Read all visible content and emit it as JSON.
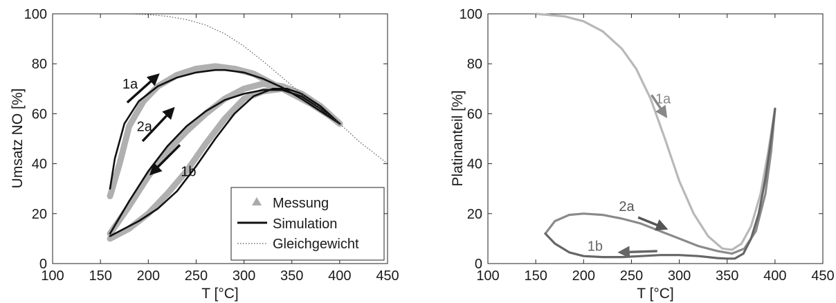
{
  "chart_data": [
    {
      "type": "line",
      "xlabel": "T [°C]",
      "ylabel": "Umsatz NO [%]",
      "xlim": [
        100,
        450
      ],
      "ylim": [
        0,
        100
      ],
      "xticks": [
        100,
        150,
        200,
        250,
        300,
        350,
        400,
        450
      ],
      "yticks": [
        0,
        20,
        40,
        60,
        80,
        100
      ],
      "grid": false,
      "legend_position": "bottom-right",
      "legend": [
        {
          "label": "Messung",
          "marker": "triangle",
          "color": "#aaaaaa"
        },
        {
          "label": "Simulation",
          "marker": "line",
          "color": "#111111"
        },
        {
          "label": "Gleichgewicht",
          "marker": "dotted",
          "color": "#555555"
        }
      ],
      "series": [
        {
          "name": "Messung",
          "style": "band",
          "color": "#b0b0b0",
          "branches": [
            {
              "x": [
                160,
                170,
                180,
                195,
                210,
                230,
                250,
                270,
                290,
                310,
                330,
                350,
                370,
                390,
                400
              ],
              "y": [
                27,
                40,
                55,
                65,
                71,
                75.5,
                78,
                79,
                78,
                76,
                72,
                68,
                64,
                59,
                56
              ]
            },
            {
              "x": [
                160,
                180,
                200,
                220,
                240,
                260,
                280,
                300,
                320,
                340,
                360,
                380,
                400
              ],
              "y": [
                12,
                23,
                35,
                45,
                53,
                60,
                66,
                70,
                72,
                71,
                68,
                63,
                56
              ]
            },
            {
              "x": [
                400,
                380,
                360,
                340,
                320,
                300,
                280,
                260,
                240,
                220,
                200,
                180,
                160
              ],
              "y": [
                56,
                63,
                68,
                70,
                69,
                66,
                58,
                48,
                37,
                28,
                20,
                14,
                10
              ]
            }
          ]
        },
        {
          "name": "Simulation",
          "style": "solid",
          "color": "#111111",
          "branches": [
            {
              "x": [
                160,
                165,
                175,
                190,
                210,
                230,
                250,
                270,
                280,
                300,
                320,
                340,
                360,
                380,
                400
              ],
              "y": [
                30,
                42,
                56,
                65,
                71,
                74.5,
                76.5,
                77.5,
                77.5,
                76.5,
                74,
                70.5,
                66,
                61,
                56
              ]
            },
            {
              "x": [
                160,
                180,
                200,
                220,
                240,
                260,
                280,
                300,
                320,
                340,
                360,
                380,
                400
              ],
              "y": [
                12,
                25,
                37,
                47,
                55,
                61,
                65.5,
                68,
                69.5,
                69.5,
                67,
                62,
                56
              ]
            },
            {
              "x": [
                400,
                380,
                360,
                345,
                330,
                310,
                290,
                270,
                250,
                230,
                210,
                190,
                170,
                160
              ],
              "y": [
                56,
                63,
                68,
                70,
                70,
                67,
                60,
                50,
                39,
                29,
                22,
                17,
                13,
                11
              ]
            }
          ]
        },
        {
          "name": "Gleichgewicht",
          "style": "dotted",
          "color": "#555555",
          "branches": [
            {
              "x": [
                150,
                180,
                200,
                220,
                240,
                260,
                280,
                300,
                320,
                340,
                360,
                380,
                400,
                420,
                440,
                450
              ],
              "y": [
                100,
                100,
                99.7,
                99,
                97.7,
                95.5,
                92,
                87,
                81,
                74.5,
                68,
                62,
                56,
                49,
                43,
                40
              ]
            }
          ]
        }
      ],
      "annotations": [
        {
          "text": "1a",
          "x": 181,
          "y": 72,
          "color": "#111111",
          "arrow_from": [
            178,
            64.5
          ],
          "arrow_to": [
            210,
            75.5
          ]
        },
        {
          "text": "2a",
          "x": 196,
          "y": 55,
          "color": "#111111",
          "arrow_from": [
            194,
            49
          ],
          "arrow_to": [
            226,
            62
          ]
        },
        {
          "text": "1b",
          "x": 242,
          "y": 37,
          "color": "#111111",
          "arrow_from": [
            233,
            47.5
          ],
          "arrow_to": [
            203,
            36
          ]
        }
      ]
    },
    {
      "type": "line",
      "xlabel": "T [°C]",
      "ylabel": "Platinanteil [%]",
      "xlim": [
        100,
        450
      ],
      "ylim": [
        0,
        100
      ],
      "xticks": [
        100,
        150,
        200,
        250,
        300,
        350,
        400,
        450
      ],
      "yticks": [
        0,
        20,
        40,
        60,
        80,
        100
      ],
      "grid": false,
      "series": [
        {
          "name": "1a",
          "color": "#b8b8b8",
          "branches": [
            {
              "x": [
                150,
                180,
                200,
                220,
                240,
                255,
                270,
                285,
                300,
                315,
                330,
                345,
                355,
                365,
                375,
                385,
                393,
                400
              ],
              "y": [
                100,
                99,
                97,
                93,
                86,
                78,
                66,
                50,
                33,
                20,
                11,
                6,
                5.5,
                8,
                15,
                28,
                45,
                62
              ]
            }
          ]
        },
        {
          "name": "2a",
          "color": "#8a8a8a",
          "branches": [
            {
              "x": [
                160,
                170,
                185,
                200,
                220,
                240,
                260,
                280,
                300,
                320,
                340,
                355,
                368,
                380,
                390,
                396,
                400
              ],
              "y": [
                12,
                17,
                19.5,
                20,
                19.5,
                18,
                16,
                13,
                10,
                7,
                5,
                4,
                6,
                13,
                28,
                45,
                62
              ]
            }
          ]
        },
        {
          "name": "1b",
          "color": "#666666",
          "branches": [
            {
              "x": [
                400,
                396,
                390,
                383,
                375,
                367,
                358,
                350,
                340,
                320,
                300,
                280,
                260,
                240,
                220,
                200,
                185,
                170,
                160
              ],
              "y": [
                62,
                50,
                34,
                20,
                10,
                4,
                2,
                2,
                2.2,
                3,
                3.4,
                3.4,
                3,
                2.6,
                2.6,
                3,
                4.5,
                8,
                12
              ]
            }
          ]
        }
      ],
      "annotations": [
        {
          "text": "1a",
          "x": 283,
          "y": 66,
          "color": "#888888",
          "arrow_from": [
            271,
            67.5
          ],
          "arrow_to": [
            286,
            59
          ]
        },
        {
          "text": "2a",
          "x": 245,
          "y": 23,
          "color": "#555555",
          "arrow_from": [
            257,
            18.5
          ],
          "arrow_to": [
            286,
            14
          ]
        },
        {
          "text": "1b",
          "x": 212,
          "y": 7,
          "color": "#666666",
          "arrow_from": [
            277,
            5
          ],
          "arrow_to": [
            238,
            4.5
          ]
        }
      ]
    }
  ]
}
